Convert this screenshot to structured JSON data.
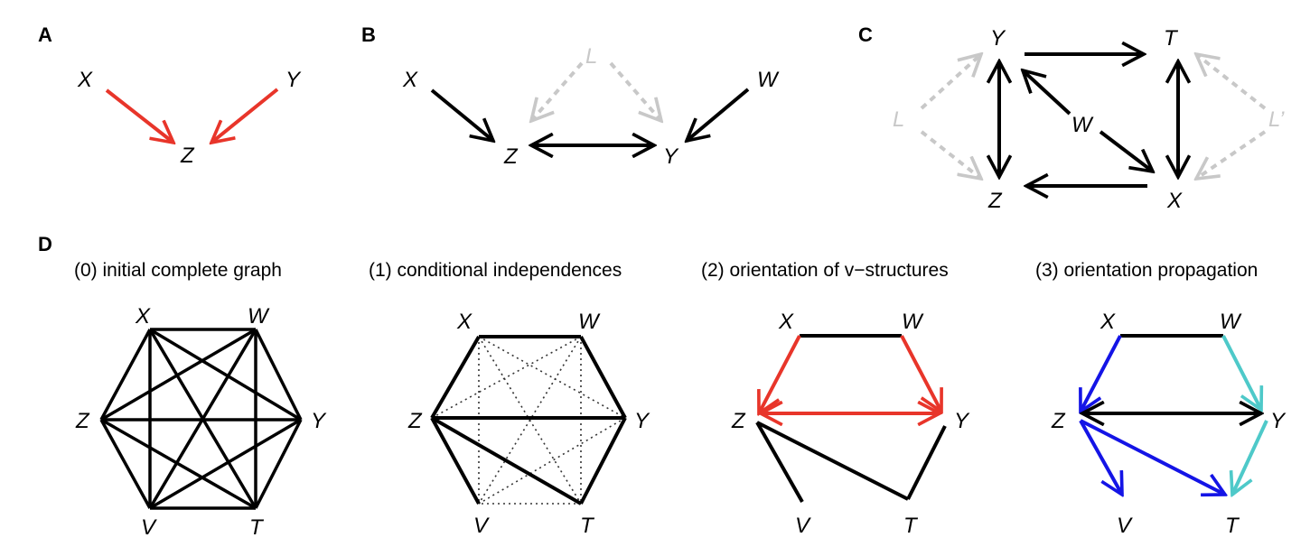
{
  "colors": {
    "black": "#000000",
    "red": "#e8352a",
    "blue": "#1414e6",
    "cyan": "#4ec9c9",
    "latent_gray": "#c8c8c8"
  },
  "panels": {
    "A": {
      "letter": "A",
      "nodes": {
        "X": "X",
        "Y": "Y",
        "Z": "Z"
      }
    },
    "B": {
      "letter": "B",
      "nodes": {
        "X": "X",
        "L": "L",
        "W": "W",
        "Z": "Z",
        "Y": "Y"
      }
    },
    "C": {
      "letter": "C",
      "nodes": {
        "Y": "Y",
        "T": "T",
        "W": "W",
        "L": "L",
        "L2": "L’",
        "Z": "Z",
        "X": "X"
      }
    },
    "D": {
      "letter": "D",
      "steps": [
        {
          "title": "(0) initial complete graph",
          "nodes": {
            "X": "X",
            "W": "W",
            "Z": "Z",
            "Y": "Y",
            "V": "V",
            "T": "T"
          }
        },
        {
          "title": "(1) conditional independences",
          "nodes": {
            "X": "X",
            "W": "W",
            "Z": "Z",
            "Y": "Y",
            "V": "V",
            "T": "T"
          }
        },
        {
          "title": "(2) orientation of v−structures",
          "nodes": {
            "X": "X",
            "W": "W",
            "Z": "Z",
            "Y": "Y",
            "V": "V",
            "T": "T"
          }
        },
        {
          "title": "(3) orientation propagation",
          "nodes": {
            "X": "X",
            "W": "W",
            "Z": "Z",
            "Y": "Y",
            "V": "V",
            "T": "T"
          }
        }
      ]
    }
  }
}
